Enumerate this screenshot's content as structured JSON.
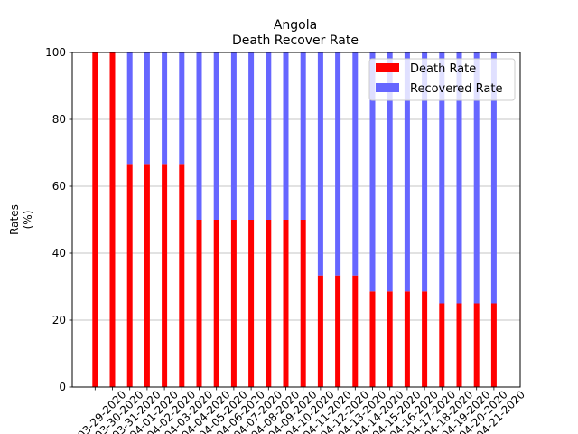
{
  "chart_data": {
    "type": "bar",
    "stacked": true,
    "title": "Angola",
    "subtitle": "Death Recover Rate",
    "xlabel": "",
    "ylabel_lines": [
      "Rates",
      "(%)"
    ],
    "ylim": [
      0,
      100
    ],
    "yticks": [
      "0",
      "20",
      "40",
      "60",
      "80",
      "100"
    ],
    "grid": "y",
    "legend_placement": "top-right",
    "categories": [
      "03-29-2020",
      "03-30-2020",
      "03-31-2020",
      "04-01-2020",
      "04-02-2020",
      "04-03-2020",
      "04-04-2020",
      "04-05-2020",
      "04-06-2020",
      "04-07-2020",
      "04-08-2020",
      "04-09-2020",
      "04-10-2020",
      "04-11-2020",
      "04-12-2020",
      "04-13-2020",
      "04-14-2020",
      "04-15-2020",
      "04-16-2020",
      "04-17-2020",
      "04-18-2020",
      "04-19-2020",
      "04-20-2020",
      "04-21-2020"
    ],
    "series": [
      {
        "name": "Death Rate",
        "color": "#ff0000",
        "values": [
          100,
          100,
          66.67,
          66.67,
          66.67,
          66.67,
          50,
          50,
          50,
          50,
          50,
          50,
          50,
          33.33,
          33.33,
          33.33,
          28.57,
          28.57,
          28.57,
          28.57,
          25,
          25,
          25,
          25
        ]
      },
      {
        "name": "Recovered Rate",
        "color": "#6666ff",
        "values": [
          0,
          0,
          33.33,
          33.33,
          33.33,
          33.33,
          50,
          50,
          50,
          50,
          50,
          50,
          50,
          66.67,
          66.67,
          66.67,
          71.43,
          71.43,
          71.43,
          71.43,
          75,
          75,
          75,
          75
        ]
      }
    ]
  }
}
